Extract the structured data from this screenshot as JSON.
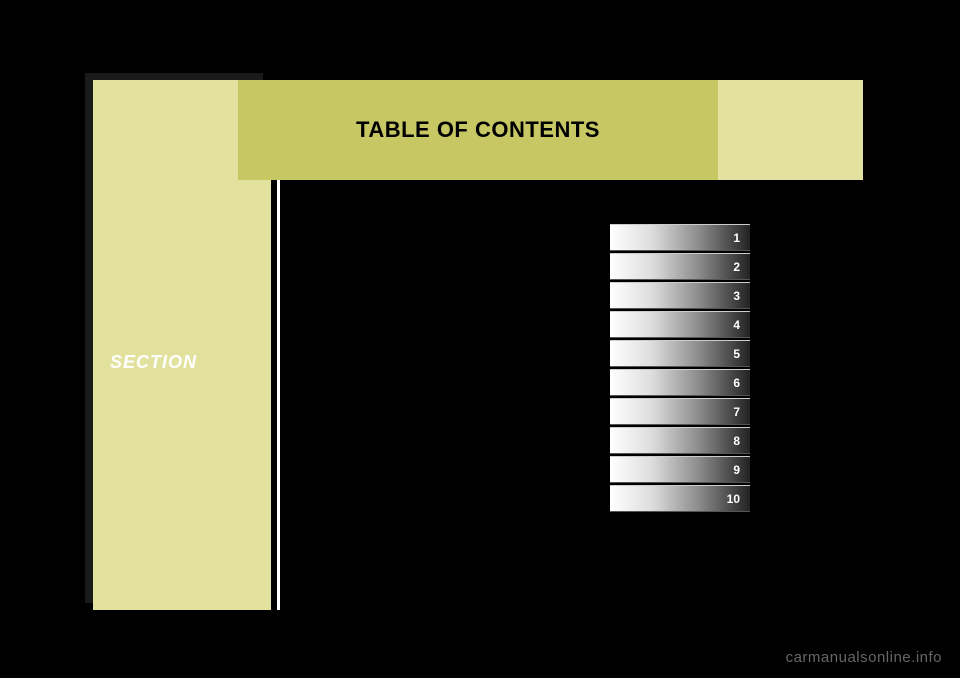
{
  "sidebar": {
    "label": "SECTION",
    "bg_color": "#e2e29e"
  },
  "header": {
    "band_color": "#e2e29e",
    "title_box_color": "#c7c864",
    "title": "TABLE OF CONTENTS"
  },
  "tabs": {
    "items": [
      {
        "num": "1"
      },
      {
        "num": "2"
      },
      {
        "num": "3"
      },
      {
        "num": "4"
      },
      {
        "num": "5"
      },
      {
        "num": "6"
      },
      {
        "num": "7"
      },
      {
        "num": "8"
      },
      {
        "num": "9"
      },
      {
        "num": "10"
      }
    ],
    "width": 140,
    "height": 27,
    "gradient_start": "#ffffff",
    "gradient_end": "#222222",
    "num_color": "#ffffff",
    "num_fontsize": 12
  },
  "watermark": "carmanualsonline.info",
  "colors": {
    "page_bg": "#000000",
    "divider_dark": "#000000",
    "divider_light": "#ffffff"
  }
}
